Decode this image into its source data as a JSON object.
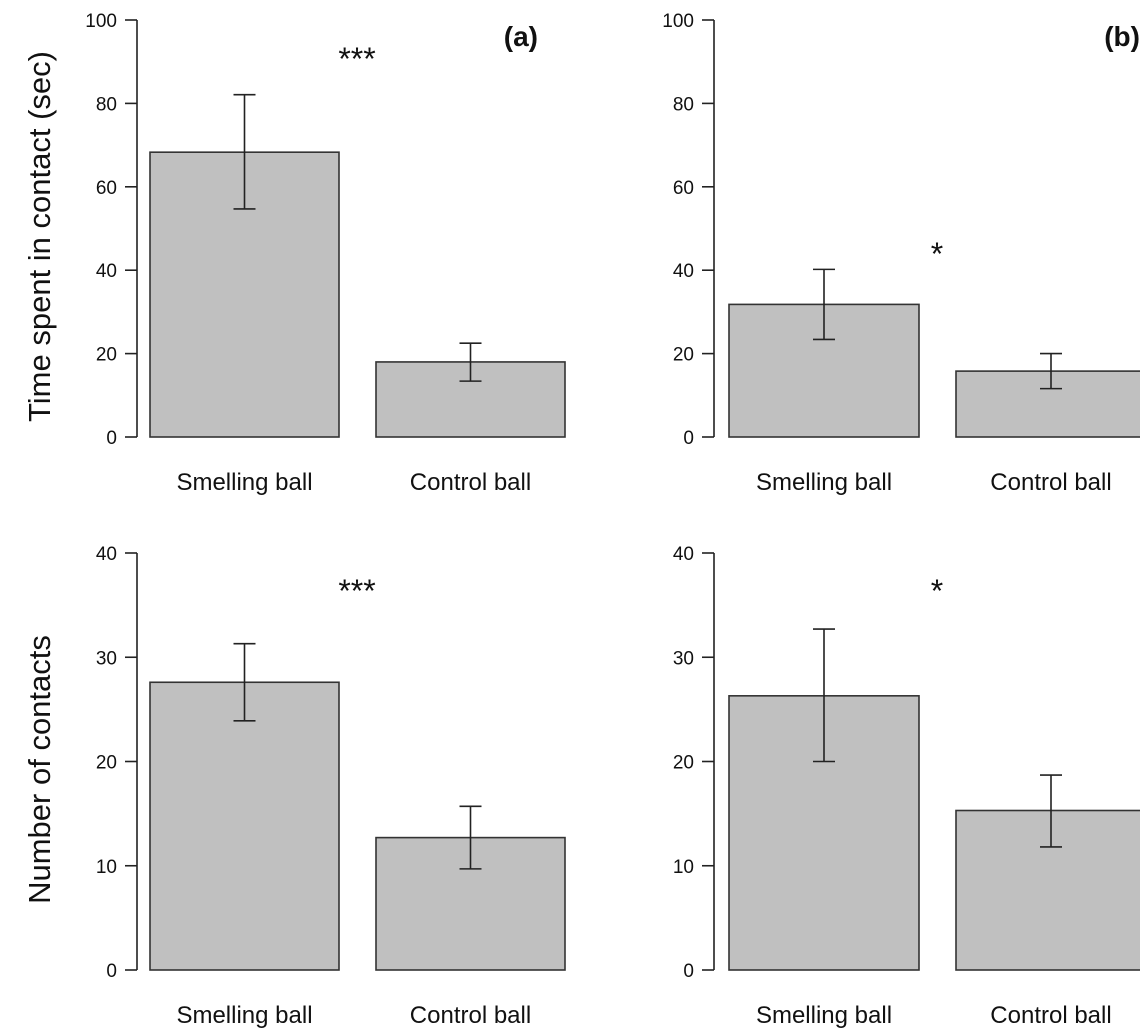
{
  "chart_data": [
    {
      "type": "bar",
      "panel_label": "(a)",
      "significance": "***",
      "categories": [
        "Smelling ball",
        "Control ball"
      ],
      "values": [
        68.3,
        18.0
      ],
      "error_low": [
        54.7,
        13.4
      ],
      "error_high": [
        82.1,
        22.5
      ],
      "ylabel": "Time spent in contact (sec)",
      "ylim": [
        0,
        100
      ],
      "yticks": [
        0,
        20,
        40,
        60,
        80,
        100
      ],
      "bar_color": "#c0c0c0"
    },
    {
      "type": "bar",
      "panel_label": "(b)",
      "significance": "*",
      "categories": [
        "Smelling ball",
        "Control ball"
      ],
      "values": [
        31.8,
        15.8
      ],
      "error_low": [
        23.4,
        11.6
      ],
      "error_high": [
        40.2,
        20.0
      ],
      "ylabel": "",
      "ylim": [
        0,
        100
      ],
      "yticks": [
        0,
        20,
        40,
        60,
        80,
        100
      ],
      "bar_color": "#c0c0c0"
    },
    {
      "type": "bar",
      "panel_label": "",
      "significance": "***",
      "categories": [
        "Smelling ball",
        "Control ball"
      ],
      "values": [
        27.6,
        12.7
      ],
      "error_low": [
        23.9,
        9.7
      ],
      "error_high": [
        31.3,
        15.7
      ],
      "ylabel": "Number of contacts",
      "ylim": [
        0,
        40
      ],
      "yticks": [
        0,
        10,
        20,
        30,
        40
      ],
      "bar_color": "#c0c0c0"
    },
    {
      "type": "bar",
      "panel_label": "",
      "significance": "*",
      "categories": [
        "Smelling ball",
        "Control ball"
      ],
      "values": [
        26.3,
        15.3
      ],
      "error_low": [
        20.0,
        11.8
      ],
      "error_high": [
        32.7,
        18.7
      ],
      "ylabel": "",
      "ylim": [
        0,
        40
      ],
      "yticks": [
        0,
        10,
        20,
        30,
        40
      ],
      "bar_color": "#c0c0c0"
    }
  ]
}
